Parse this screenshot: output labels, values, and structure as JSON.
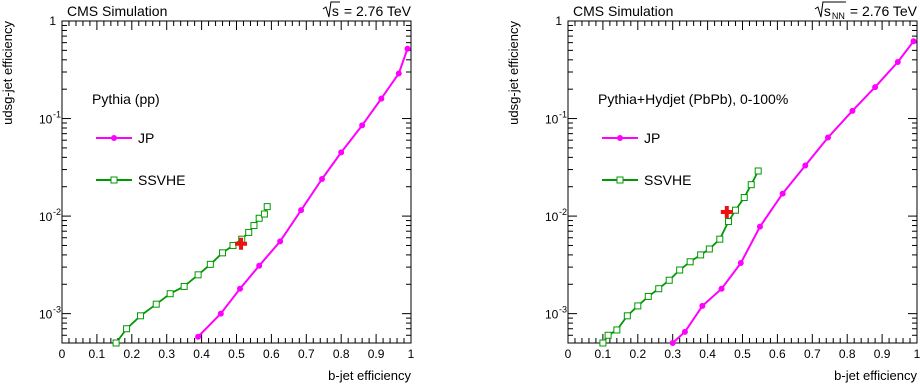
{
  "chart_data": [
    {
      "type": "line",
      "header_left": "CMS Simulation",
      "header_right": "= 2.76 TeV",
      "header_sqrt": "s",
      "header_sub": "",
      "legend_title": "Pythia (pp)",
      "xlabel": "b-jet efficiency",
      "ylabel": "udsg-jet efficiency",
      "xlim": [
        0,
        1
      ],
      "ylim": [
        0.0005,
        1
      ],
      "yscale": "log",
      "xticks": [
        "0",
        "0.1",
        "0.2",
        "0.3",
        "0.4",
        "0.5",
        "0.6",
        "0.7",
        "0.8",
        "0.9",
        "1"
      ],
      "yticks": [
        {
          "value": 1,
          "label": "1",
          "base": "",
          "exp": ""
        },
        {
          "value": 0.1,
          "label": "",
          "base": "10",
          "exp": "-1"
        },
        {
          "value": 0.01,
          "label": "",
          "base": "10",
          "exp": "-2"
        },
        {
          "value": 0.001,
          "label": "",
          "base": "10",
          "exp": "-3"
        }
      ],
      "series": [
        {
          "name": "JP",
          "color": "#ff00ff",
          "marker": "filled-circle",
          "x": [
            0.39,
            0.455,
            0.51,
            0.565,
            0.625,
            0.685,
            0.745,
            0.8,
            0.86,
            0.915,
            0.965,
            0.99
          ],
          "y": [
            0.00058,
            0.001,
            0.0018,
            0.0031,
            0.0055,
            0.0115,
            0.024,
            0.045,
            0.085,
            0.16,
            0.29,
            0.52
          ]
        },
        {
          "name": "SSVHE",
          "color": "#009900",
          "marker": "open-square",
          "x": [
            0.155,
            0.185,
            0.225,
            0.27,
            0.31,
            0.35,
            0.39,
            0.425,
            0.46,
            0.49,
            0.515,
            0.535,
            0.55,
            0.565,
            0.58,
            0.588
          ],
          "y": [
            0.0005,
            0.0007,
            0.00095,
            0.00125,
            0.0016,
            0.0019,
            0.0025,
            0.0032,
            0.0042,
            0.005,
            0.0058,
            0.0068,
            0.008,
            0.0095,
            0.0105,
            0.0125
          ]
        }
      ],
      "working_point": {
        "x": 0.513,
        "y": 0.0052,
        "color": "#ee1111",
        "marker": "cross"
      }
    },
    {
      "type": "line",
      "header_left": "CMS Simulation",
      "header_right": "= 2.76 TeV",
      "header_sqrt": "s",
      "header_sub": "NN",
      "legend_title": "Pythia+Hydjet (PbPb), 0-100%",
      "xlabel": "b-jet efficiency",
      "ylabel": "udsg-jet efficiency",
      "xlim": [
        0,
        1
      ],
      "ylim": [
        0.0005,
        1
      ],
      "yscale": "log",
      "xticks": [
        "0",
        "0.1",
        "0.2",
        "0.3",
        "0.4",
        "0.5",
        "0.6",
        "0.7",
        "0.8",
        "0.9",
        "1"
      ],
      "yticks": [
        {
          "value": 1,
          "label": "1",
          "base": "",
          "exp": ""
        },
        {
          "value": 0.1,
          "label": "",
          "base": "10",
          "exp": "-1"
        },
        {
          "value": 0.01,
          "label": "",
          "base": "10",
          "exp": "-2"
        },
        {
          "value": 0.001,
          "label": "",
          "base": "10",
          "exp": "-3"
        }
      ],
      "series": [
        {
          "name": "JP",
          "color": "#ff00ff",
          "marker": "filled-circle",
          "x": [
            0.3,
            0.335,
            0.385,
            0.44,
            0.495,
            0.55,
            0.615,
            0.68,
            0.745,
            0.815,
            0.88,
            0.945,
            0.99
          ],
          "y": [
            0.0005,
            0.00065,
            0.0012,
            0.0018,
            0.0033,
            0.0078,
            0.017,
            0.033,
            0.064,
            0.12,
            0.21,
            0.38,
            0.62
          ]
        },
        {
          "name": "SSVHE",
          "color": "#009900",
          "marker": "open-square",
          "x": [
            0.1,
            0.115,
            0.14,
            0.17,
            0.2,
            0.23,
            0.26,
            0.29,
            0.32,
            0.35,
            0.38,
            0.405,
            0.435,
            0.46,
            0.48,
            0.505,
            0.525,
            0.545
          ],
          "y": [
            0.0005,
            0.0006,
            0.00068,
            0.00095,
            0.0012,
            0.0015,
            0.0018,
            0.0022,
            0.0028,
            0.0034,
            0.004,
            0.0046,
            0.0058,
            0.0088,
            0.0115,
            0.0155,
            0.021,
            0.029
          ]
        }
      ],
      "working_point": {
        "x": 0.455,
        "y": 0.011,
        "color": "#ee1111",
        "marker": "cross"
      }
    }
  ]
}
